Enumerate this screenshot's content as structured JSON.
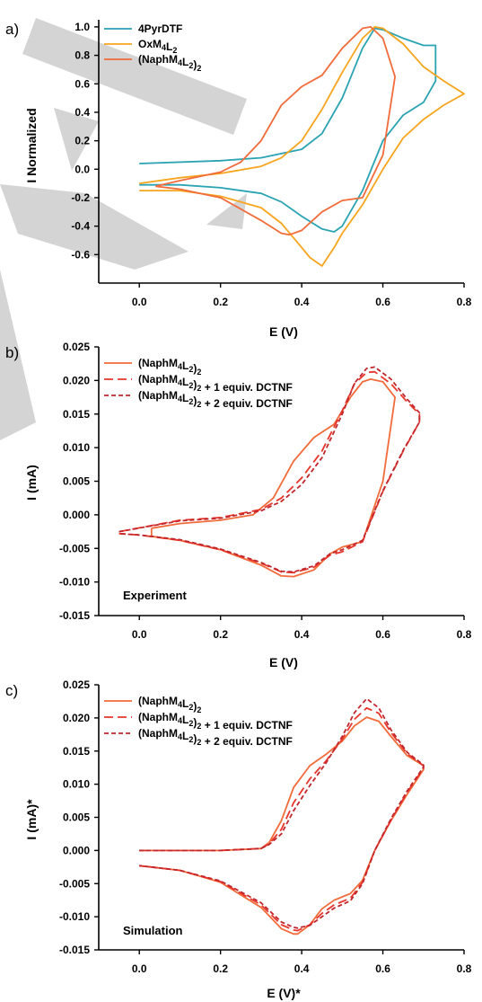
{
  "figure": {
    "watermark_color": "#cccccc",
    "panels": [
      {
        "label": "a)",
        "annotation": "",
        "xlabel": "E (V)",
        "xlabel_sub": "",
        "ylabel": "I Normalized",
        "ylabel_sub": ""
      },
      {
        "label": "b)",
        "annotation": "Experiment",
        "xlabel": "E (V)",
        "xlabel_sub": "",
        "ylabel": "I (mA)",
        "ylabel_sub": ""
      },
      {
        "label": "c)",
        "annotation": "Simulation",
        "xlabel": "E (V)",
        "xlabel_sub": "*",
        "ylabel": "I (mA)",
        "ylabel_sub": "*"
      }
    ]
  },
  "chart_data": [
    {
      "type": "line",
      "title": "",
      "xlabel": "E (V)",
      "ylabel": "I Normalized",
      "xlim": [
        -0.1,
        0.8
      ],
      "ylim": [
        -0.8,
        1.05
      ],
      "xticks": [
        "0.0",
        "0.2",
        "0.4",
        "0.6",
        "0.8"
      ],
      "yticks": [
        "-0.6",
        "-0.4",
        "-0.2",
        "0.0",
        "0.2",
        "0.4",
        "0.6",
        "0.8",
        "1.0"
      ],
      "legend_position": "top-left",
      "series": [
        {
          "name": "4PyrDTF",
          "color": "#2aa3b2",
          "dash": "solid",
          "x": [
            0.0,
            0.2,
            0.3,
            0.4,
            0.45,
            0.5,
            0.55,
            0.58,
            0.6,
            0.65,
            0.7,
            0.73,
            0.73,
            0.7,
            0.65,
            0.6,
            0.55,
            0.5,
            0.48,
            0.45,
            0.4,
            0.35,
            0.3,
            0.2,
            0.1,
            0.0
          ],
          "y": [
            0.04,
            0.06,
            0.08,
            0.14,
            0.25,
            0.5,
            0.85,
            0.99,
            0.98,
            0.92,
            0.87,
            0.87,
            0.62,
            0.47,
            0.38,
            0.2,
            -0.15,
            -0.4,
            -0.44,
            -0.42,
            -0.33,
            -0.23,
            -0.17,
            -0.13,
            -0.11,
            -0.11
          ]
        },
        {
          "name": "OxM4L2",
          "color": "#f7a51e",
          "dash": "solid",
          "x": [
            0.0,
            0.1,
            0.2,
            0.3,
            0.35,
            0.4,
            0.45,
            0.5,
            0.55,
            0.58,
            0.6,
            0.65,
            0.7,
            0.75,
            0.8,
            0.75,
            0.7,
            0.65,
            0.6,
            0.55,
            0.5,
            0.48,
            0.45,
            0.42,
            0.4,
            0.35,
            0.3,
            0.2,
            0.1,
            0.0
          ],
          "y": [
            -0.1,
            -0.06,
            -0.03,
            0.02,
            0.08,
            0.2,
            0.42,
            0.68,
            0.92,
            1.0,
            0.99,
            0.88,
            0.72,
            0.62,
            0.53,
            0.45,
            0.35,
            0.22,
            0.0,
            -0.25,
            -0.45,
            -0.55,
            -0.68,
            -0.62,
            -0.55,
            -0.38,
            -0.27,
            -0.19,
            -0.15,
            -0.15
          ]
        },
        {
          "name": "(NaphM4L2)2",
          "color": "#f26b3a",
          "dash": "solid",
          "x": [
            0.04,
            0.1,
            0.2,
            0.25,
            0.3,
            0.35,
            0.4,
            0.45,
            0.5,
            0.55,
            0.57,
            0.6,
            0.63,
            0.6,
            0.55,
            0.5,
            0.45,
            0.4,
            0.37,
            0.35,
            0.3,
            0.2,
            0.1,
            0.04
          ],
          "y": [
            -0.12,
            -0.08,
            -0.02,
            0.05,
            0.2,
            0.45,
            0.58,
            0.66,
            0.85,
            0.99,
            1.0,
            0.92,
            0.65,
            0.1,
            -0.2,
            -0.22,
            -0.3,
            -0.43,
            -0.46,
            -0.45,
            -0.36,
            -0.2,
            -0.14,
            -0.12
          ]
        }
      ]
    },
    {
      "type": "line",
      "title": "",
      "xlabel": "E (V)",
      "ylabel": "I (mA)",
      "xlim": [
        -0.1,
        0.8
      ],
      "ylim": [
        -0.015,
        0.025
      ],
      "xticks": [
        "0.0",
        "0.2",
        "0.4",
        "0.6",
        "0.8"
      ],
      "yticks": [
        "-0.015",
        "-0.010",
        "-0.005",
        "0.000",
        "0.005",
        "0.010",
        "0.015",
        "0.020",
        "0.025"
      ],
      "legend_position": "top-left",
      "series": [
        {
          "name": "(NaphM4L2)2",
          "color": "#f26b3a",
          "dash": "solid",
          "x": [
            0.03,
            0.1,
            0.2,
            0.28,
            0.33,
            0.38,
            0.43,
            0.48,
            0.52,
            0.55,
            0.57,
            0.6,
            0.63,
            0.6,
            0.55,
            0.5,
            0.47,
            0.43,
            0.38,
            0.35,
            0.3,
            0.2,
            0.1,
            0.03,
            0.03
          ],
          "y": [
            -0.002,
            -0.0013,
            -0.0008,
            0.0,
            0.0025,
            0.008,
            0.0115,
            0.0135,
            0.0175,
            0.0198,
            0.0202,
            0.0198,
            0.0175,
            0.005,
            -0.004,
            -0.0048,
            -0.0058,
            -0.0082,
            -0.0092,
            -0.0091,
            -0.0075,
            -0.0052,
            -0.0038,
            -0.0032,
            -0.002
          ]
        },
        {
          "name": "(NaphM4L2)2 + 1 equiv. DCTNF",
          "color": "#e8352b",
          "dash": "long",
          "x": [
            -0.05,
            0.1,
            0.2,
            0.3,
            0.35,
            0.4,
            0.45,
            0.5,
            0.53,
            0.56,
            0.58,
            0.62,
            0.66,
            0.69,
            0.69,
            0.65,
            0.6,
            0.55,
            0.5,
            0.47,
            0.43,
            0.38,
            0.35,
            0.3,
            0.2,
            0.1,
            0.0,
            -0.05
          ],
          "y": [
            -0.0025,
            -0.0008,
            -0.0004,
            0.0008,
            0.0025,
            0.0055,
            0.0095,
            0.0155,
            0.0195,
            0.0212,
            0.0213,
            0.0195,
            0.0168,
            0.015,
            0.0138,
            0.0095,
            0.0035,
            -0.004,
            -0.0055,
            -0.006,
            -0.0078,
            -0.0086,
            -0.0085,
            -0.0072,
            -0.0052,
            -0.0038,
            -0.003,
            -0.0028
          ]
        },
        {
          "name": "(NaphM4L2)2 + 2 equiv. DCTNF",
          "color": "#c0272d",
          "dash": "short",
          "x": [
            -0.05,
            0.1,
            0.2,
            0.3,
            0.35,
            0.4,
            0.45,
            0.5,
            0.53,
            0.56,
            0.58,
            0.62,
            0.66,
            0.69,
            0.69,
            0.65,
            0.6,
            0.55,
            0.5,
            0.47,
            0.43,
            0.38,
            0.35,
            0.3,
            0.2,
            0.1,
            0.0,
            -0.05
          ],
          "y": [
            -0.0025,
            -0.0009,
            -0.0005,
            0.0006,
            0.002,
            0.0045,
            0.0085,
            0.015,
            0.0196,
            0.0218,
            0.022,
            0.0202,
            0.0172,
            0.0152,
            0.0138,
            0.0096,
            0.0036,
            -0.0038,
            -0.0052,
            -0.0058,
            -0.0076,
            -0.0085,
            -0.0084,
            -0.0071,
            -0.0051,
            -0.0037,
            -0.003,
            -0.0028
          ]
        }
      ]
    },
    {
      "type": "line",
      "title": "",
      "xlabel": "E (V)*",
      "ylabel": "I (mA)*",
      "xlim": [
        -0.1,
        0.8
      ],
      "ylim": [
        -0.015,
        0.025
      ],
      "xticks": [
        "0.0",
        "0.2",
        "0.4",
        "0.6",
        "0.8"
      ],
      "yticks": [
        "-0.015",
        "-0.010",
        "-0.005",
        "0.000",
        "0.005",
        "0.010",
        "0.015",
        "0.020",
        "0.025"
      ],
      "legend_position": "top-left",
      "series": [
        {
          "name": "(NaphM4L2)2",
          "color": "#f26b3a",
          "dash": "solid",
          "x": [
            0.0,
            0.2,
            0.3,
            0.32,
            0.35,
            0.38,
            0.42,
            0.46,
            0.5,
            0.53,
            0.56,
            0.59,
            0.62,
            0.66,
            0.7,
            0.7,
            0.66,
            0.62,
            0.58,
            0.55,
            0.52,
            0.48,
            0.45,
            0.42,
            0.39,
            0.38,
            0.35,
            0.3,
            0.2,
            0.1,
            0.0
          ],
          "y": [
            0.0,
            0.0,
            0.0003,
            0.0012,
            0.0045,
            0.0095,
            0.0128,
            0.0145,
            0.0165,
            0.0188,
            0.0201,
            0.0195,
            0.0172,
            0.0143,
            0.0128,
            0.0122,
            0.0085,
            0.0045,
            0.0,
            -0.0045,
            -0.0065,
            -0.0075,
            -0.0088,
            -0.0112,
            -0.0126,
            -0.0126,
            -0.0118,
            -0.0086,
            -0.0048,
            -0.003,
            -0.0023
          ]
        },
        {
          "name": "(NaphM4L2)2 + 1 equiv. DCTNF",
          "color": "#e8352b",
          "dash": "long",
          "x": [
            0.0,
            0.2,
            0.3,
            0.32,
            0.35,
            0.38,
            0.42,
            0.46,
            0.5,
            0.53,
            0.56,
            0.59,
            0.62,
            0.66,
            0.7,
            0.7,
            0.66,
            0.62,
            0.58,
            0.55,
            0.52,
            0.48,
            0.45,
            0.42,
            0.39,
            0.38,
            0.35,
            0.3,
            0.2,
            0.1,
            0.0
          ],
          "y": [
            0.0,
            0.0,
            0.0003,
            0.001,
            0.0032,
            0.0072,
            0.0108,
            0.0135,
            0.0168,
            0.0198,
            0.0215,
            0.0207,
            0.0178,
            0.0146,
            0.0128,
            0.0124,
            0.0088,
            0.0046,
            0.0,
            -0.0048,
            -0.0072,
            -0.0082,
            -0.0095,
            -0.0112,
            -0.0121,
            -0.012,
            -0.0112,
            -0.0082,
            -0.0047,
            -0.003,
            -0.0023
          ]
        },
        {
          "name": "(NaphM4L2)2 + 2 equiv. DCTNF",
          "color": "#c0272d",
          "dash": "short",
          "x": [
            0.0,
            0.2,
            0.3,
            0.32,
            0.35,
            0.38,
            0.42,
            0.46,
            0.5,
            0.53,
            0.56,
            0.59,
            0.62,
            0.66,
            0.7,
            0.7,
            0.66,
            0.62,
            0.58,
            0.55,
            0.52,
            0.48,
            0.45,
            0.42,
            0.39,
            0.38,
            0.35,
            0.3,
            0.2,
            0.1,
            0.0
          ],
          "y": [
            0.0,
            0.0,
            0.0003,
            0.0009,
            0.0025,
            0.006,
            0.0098,
            0.0132,
            0.0172,
            0.0208,
            0.0229,
            0.0215,
            0.0182,
            0.0148,
            0.0129,
            0.0126,
            0.009,
            0.0048,
            0.0,
            -0.005,
            -0.0076,
            -0.0087,
            -0.01,
            -0.0113,
            -0.0117,
            -0.0116,
            -0.0108,
            -0.0079,
            -0.0046,
            -0.003,
            -0.0023
          ]
        }
      ]
    }
  ]
}
